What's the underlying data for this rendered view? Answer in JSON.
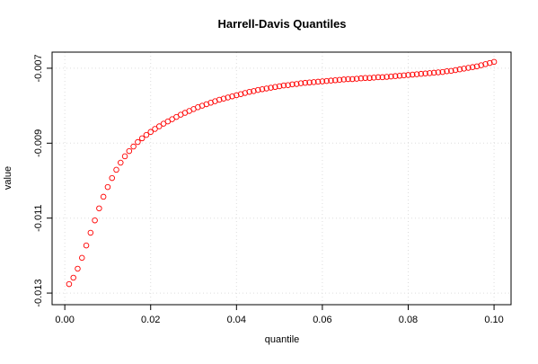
{
  "chart_data": {
    "type": "scatter",
    "title": "Harrell-Davis Quantiles",
    "x_label": "quantile",
    "y_label": "value",
    "series": [
      {
        "name": "Harrell-Davis quantiles",
        "color": "#ff0000",
        "x": [
          0.001,
          0.002,
          0.003,
          0.004,
          0.005,
          0.006,
          0.007,
          0.008,
          0.009,
          0.01,
          0.011,
          0.012,
          0.013,
          0.014,
          0.015,
          0.016,
          0.017,
          0.018,
          0.019,
          0.02,
          0.021,
          0.022,
          0.023,
          0.024,
          0.025,
          0.026,
          0.027,
          0.028,
          0.029,
          0.03,
          0.031,
          0.032,
          0.033,
          0.034,
          0.035,
          0.036,
          0.037,
          0.038,
          0.039,
          0.04,
          0.041,
          0.042,
          0.043,
          0.044,
          0.045,
          0.046,
          0.047,
          0.048,
          0.049,
          0.05,
          0.051,
          0.052,
          0.053,
          0.054,
          0.055,
          0.056,
          0.057,
          0.058,
          0.059,
          0.06,
          0.061,
          0.062,
          0.063,
          0.064,
          0.065,
          0.066,
          0.067,
          0.068,
          0.069,
          0.07,
          0.071,
          0.072,
          0.073,
          0.074,
          0.075,
          0.076,
          0.077,
          0.078,
          0.079,
          0.08,
          0.081,
          0.082,
          0.083,
          0.084,
          0.085,
          0.086,
          0.087,
          0.088,
          0.089,
          0.09,
          0.091,
          0.092,
          0.093,
          0.094,
          0.095,
          0.096,
          0.097,
          0.098,
          0.099,
          0.1
        ],
        "values": [
          -0.01276,
          -0.01259,
          -0.01235,
          -0.01206,
          -0.01173,
          -0.01139,
          -0.01106,
          -0.01074,
          -0.01043,
          -0.01017,
          -0.00993,
          -0.00971,
          -0.00952,
          -0.00935,
          -0.00921,
          -0.00909,
          -0.00897,
          -0.00887,
          -0.00878,
          -0.0087,
          -0.00862,
          -0.00855,
          -0.00848,
          -0.00842,
          -0.00836,
          -0.0083,
          -0.00824,
          -0.00819,
          -0.00814,
          -0.00809,
          -0.00804,
          -0.008,
          -0.00796,
          -0.00792,
          -0.00788,
          -0.00784,
          -0.00781,
          -0.00778,
          -0.00775,
          -0.00772,
          -0.00769,
          -0.00766,
          -0.00763,
          -0.00761,
          -0.00758,
          -0.00756,
          -0.00754,
          -0.00752,
          -0.0075,
          -0.00748,
          -0.00746,
          -0.00745,
          -0.00743,
          -0.00742,
          -0.0074,
          -0.00739,
          -0.00738,
          -0.00737,
          -0.00736,
          -0.00735,
          -0.00734,
          -0.00733,
          -0.00732,
          -0.00731,
          -0.0073,
          -0.00729,
          -0.00729,
          -0.00728,
          -0.00727,
          -0.00726,
          -0.00726,
          -0.00725,
          -0.00724,
          -0.00724,
          -0.00723,
          -0.00722,
          -0.00721,
          -0.0072,
          -0.00719,
          -0.00718,
          -0.00717,
          -0.00716,
          -0.00715,
          -0.00714,
          -0.00713,
          -0.00712,
          -0.00711,
          -0.0071,
          -0.00708,
          -0.00707,
          -0.00705,
          -0.00703,
          -0.00701,
          -0.00699,
          -0.00697,
          -0.00695,
          -0.00692,
          -0.00689,
          -0.00686,
          -0.00683
        ]
      }
    ],
    "xlim": [
      -0.00296,
      0.10396
    ],
    "ylim": [
      -0.01331,
      -0.00657
    ],
    "xticks": [
      {
        "value": 0,
        "label": "0.00"
      },
      0.02,
      0.04,
      0.06,
      0.08,
      {
        "value": 0.1,
        "label": "0.10"
      }
    ],
    "yticks": [
      -0.013,
      -0.011,
      -0.009,
      -0.007
    ],
    "grid": true
  }
}
